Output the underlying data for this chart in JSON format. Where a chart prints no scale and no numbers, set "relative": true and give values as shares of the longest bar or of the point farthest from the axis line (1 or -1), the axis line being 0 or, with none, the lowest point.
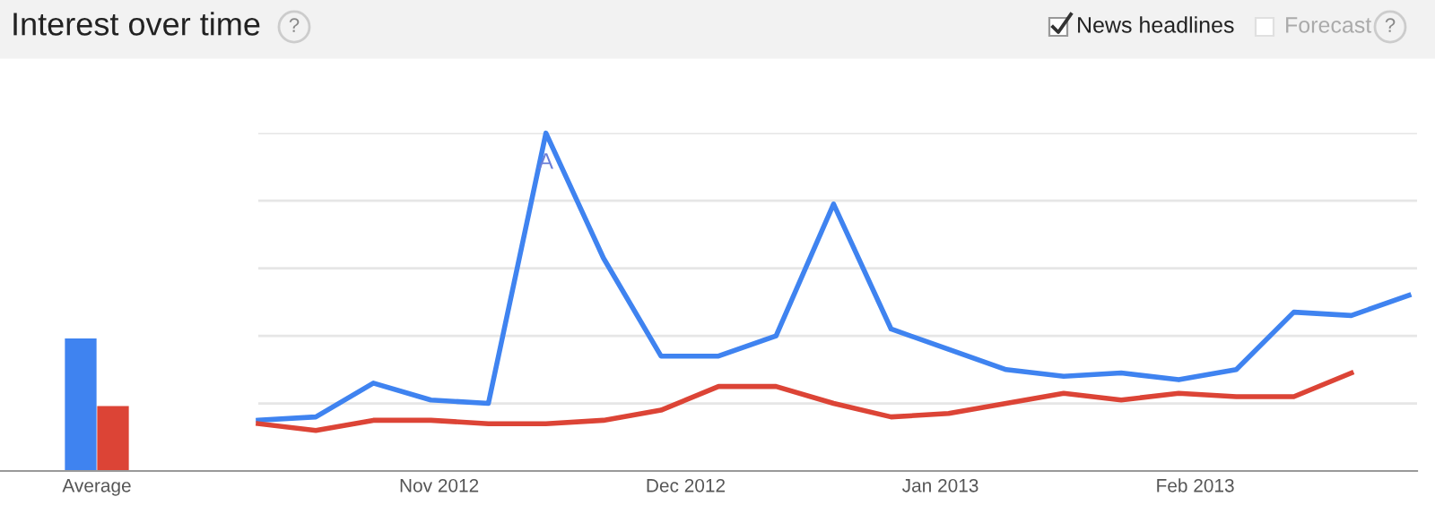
{
  "chart_data": [
    {
      "type": "bar",
      "title": "Interest over time",
      "annotations": [
        "?",
        "News headlines",
        "Forecast",
        "?"
      ],
      "relative": true,
      "categories": [
        "Average"
      ],
      "series": [
        {
          "color": "#3f83f0",
          "values": [
            1.0
          ]
        },
        {
          "color": "#dc4436",
          "values": [
            0.49
          ]
        }
      ]
    },
    {
      "type": "line",
      "relative": true,
      "grid": "y",
      "x": [
        "2012-10-10",
        "2012-10-17",
        "2012-10-24",
        "2012-10-31",
        "2012-11-07",
        "2012-11-14",
        "2012-11-21",
        "2012-11-28",
        "2012-12-05",
        "2012-12-12",
        "2012-12-19",
        "2012-12-26",
        "2013-01-02",
        "2013-01-09",
        "2013-01-16",
        "2013-01-23",
        "2013-01-30",
        "2013-02-06",
        "2013-02-13",
        "2013-02-20",
        "2013-02-27"
      ],
      "xlim": [
        "2012-10-10",
        "2013-02-28"
      ],
      "xticks": [
        {
          "value": "2012-11-01",
          "label": "Nov 2012"
        },
        {
          "value": "2012-12-01",
          "label": "Dec 2012"
        },
        {
          "value": "2013-01-01",
          "label": "Jan 2013"
        },
        {
          "value": "2013-02-01",
          "label": "Feb 2013"
        }
      ],
      "annotations": [
        {
          "text": "A",
          "x": "2012-11-14",
          "y": 1.0
        }
      ],
      "series": [
        {
          "color": "#3f83f0",
          "values": [
            0.15,
            0.16,
            0.26,
            0.21,
            0.2,
            1.0,
            0.63,
            0.34,
            0.34,
            0.4,
            0.79,
            0.42,
            0.36,
            0.3,
            0.28,
            0.29,
            0.27,
            0.3,
            0.47,
            0.46,
            0.52
          ]
        },
        {
          "color": "#dc4436",
          "values": [
            0.14,
            0.12,
            0.15,
            0.15,
            0.14,
            0.14,
            0.15,
            0.18,
            0.25,
            0.25,
            0.2,
            0.16,
            0.17,
            0.2,
            0.23,
            0.21,
            0.23,
            0.22,
            0.22,
            0.29,
            null
          ]
        }
      ]
    }
  ]
}
